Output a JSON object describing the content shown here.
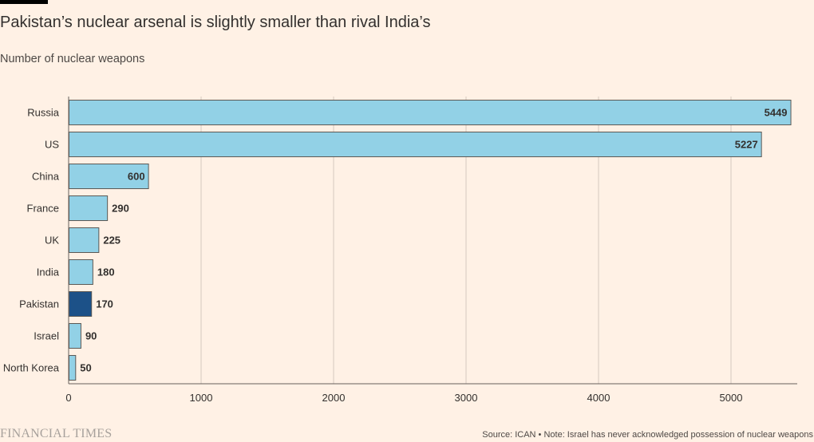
{
  "header": {
    "title": "Pakistan’s nuclear arsenal is slightly smaller than rival India’s",
    "subtitle": "Number of nuclear weapons"
  },
  "footer": {
    "logo": "FINANCIAL TIMES",
    "source": "Source: ICAN • Note: Israel has never acknowledged possession of nuclear weapons"
  },
  "colors": {
    "background": "#fff1e5",
    "bar": "#92d1e6",
    "highlight_bar": "#1c5188",
    "bar_stroke": "#5c5955",
    "grid": "#d4c9bf",
    "axis": "#66605c",
    "text": "#33302e"
  },
  "chart_data": {
    "type": "bar",
    "orientation": "horizontal",
    "title": "Pakistan’s nuclear arsenal is slightly smaller than rival India’s",
    "subtitle": "Number of nuclear weapons",
    "categories": [
      "Russia",
      "US",
      "China",
      "France",
      "UK",
      "India",
      "Pakistan",
      "Israel",
      "North Korea"
    ],
    "values": [
      5449,
      5227,
      600,
      290,
      225,
      180,
      170,
      90,
      50
    ],
    "highlight": "Pakistan",
    "xlim": [
      0,
      5500
    ],
    "xticks": [
      0,
      1000,
      2000,
      3000,
      4000,
      5000
    ],
    "grid": true,
    "legend": "none"
  }
}
